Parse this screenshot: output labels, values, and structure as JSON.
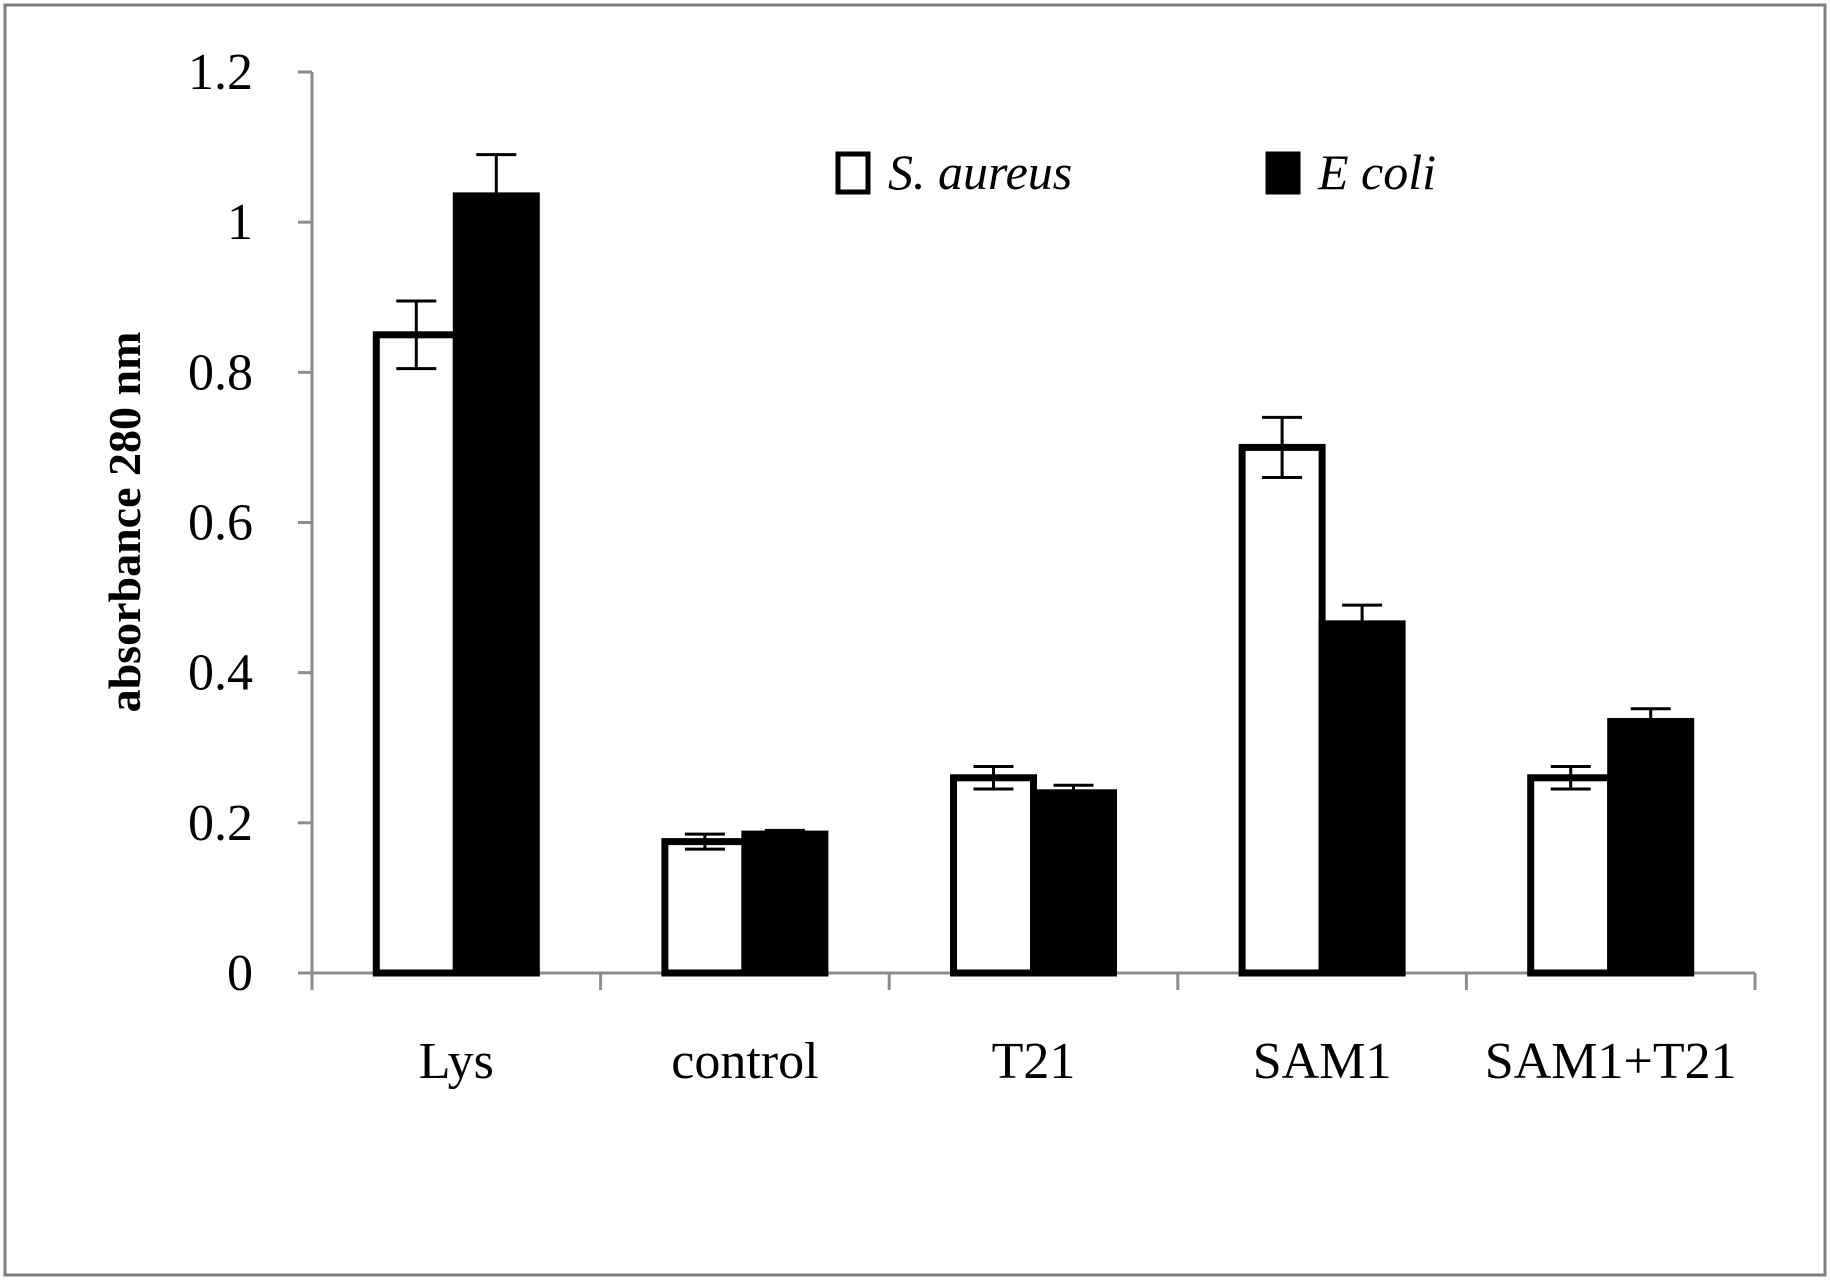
{
  "chart_data": {
    "type": "bar",
    "title": "",
    "xlabel": "",
    "ylabel": "absorbance 280 nm",
    "ylim": [
      0,
      1.2
    ],
    "yticks": [
      0,
      0.2,
      0.4,
      0.6,
      0.8,
      1,
      1.2
    ],
    "ytick_labels": [
      "0",
      "0.2",
      "0.4",
      "0.6",
      "0.8",
      "1",
      "1.2"
    ],
    "categories": [
      "Lys",
      "control",
      "T21",
      "SAM1",
      "SAM1+T21"
    ],
    "series": [
      {
        "name": "S. aureus",
        "fill": "#ffffff",
        "values": [
          0.85,
          0.175,
          0.26,
          0.7,
          0.26
        ],
        "errors": [
          0.045,
          0.01,
          0.015,
          0.04,
          0.015
        ]
      },
      {
        "name": "E coli",
        "fill": "#000000",
        "values": [
          1.035,
          0.185,
          0.24,
          0.465,
          0.335
        ],
        "errors": [
          0.055,
          0.005,
          0.01,
          0.025,
          0.017
        ]
      }
    ],
    "legend_position": "top-center",
    "grid": false
  }
}
